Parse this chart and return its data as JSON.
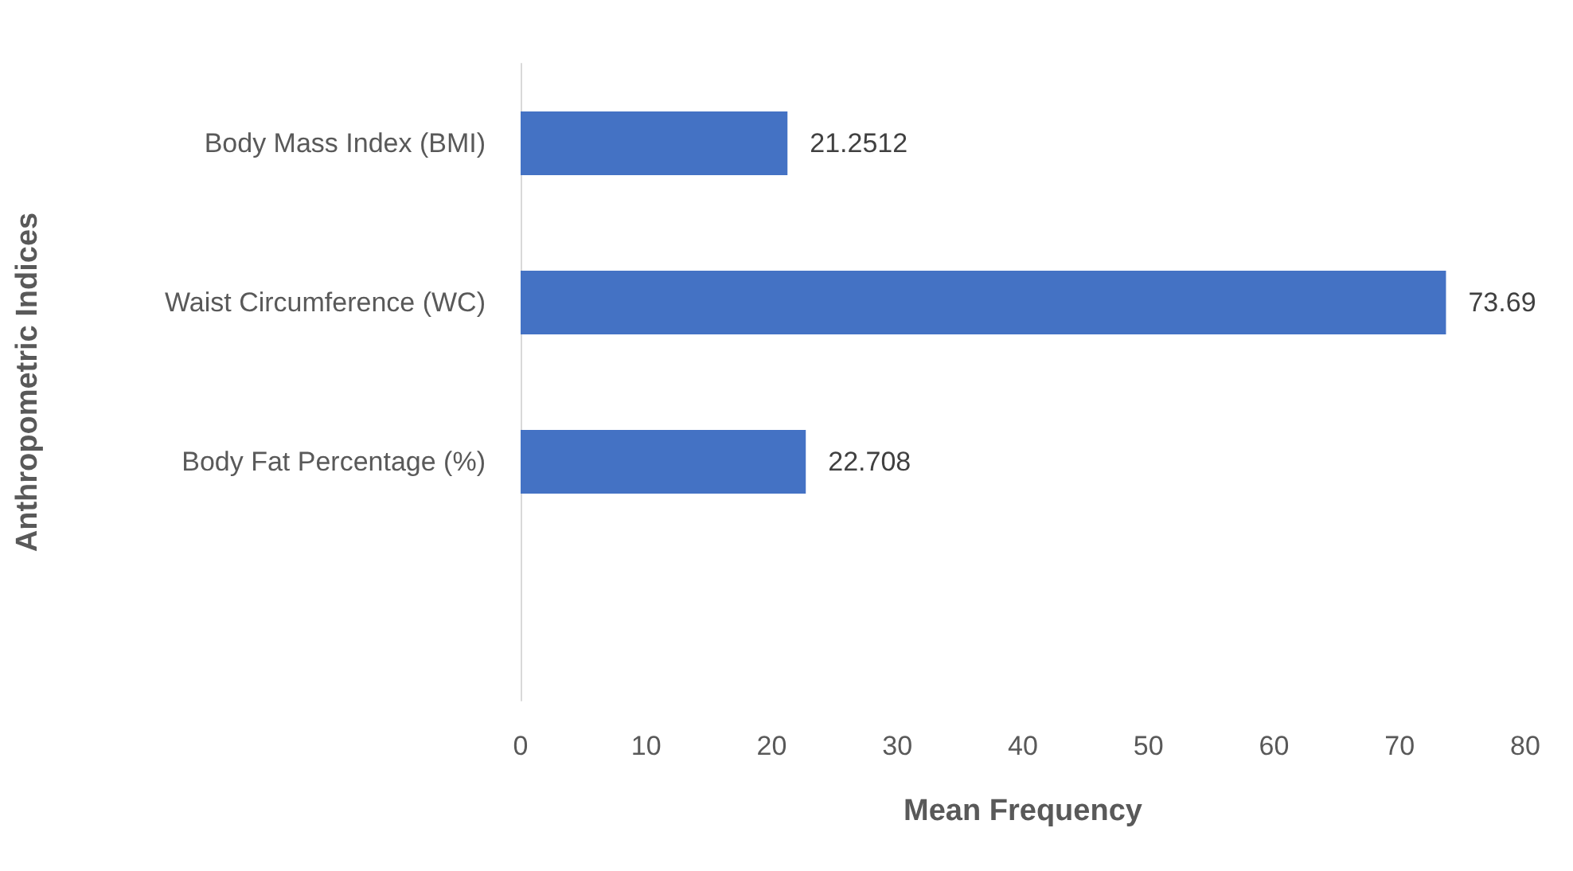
{
  "chart_data": {
    "type": "bar",
    "orientation": "horizontal",
    "xlabel": "Mean Frequency",
    "ylabel": "Anthropometric Indices",
    "categories": [
      "Body Mass Index (BMI)",
      "Waist Circumference (WC)",
      "Body Fat Percentage (%)",
      null
    ],
    "values": [
      21.2512,
      73.69,
      22.708,
      null
    ],
    "color": "#4472c4",
    "xlim": [
      0,
      80
    ],
    "xticks": [
      0,
      10,
      20,
      30,
      40,
      50,
      60,
      70,
      80
    ],
    "grid": false,
    "data_labels": true
  }
}
